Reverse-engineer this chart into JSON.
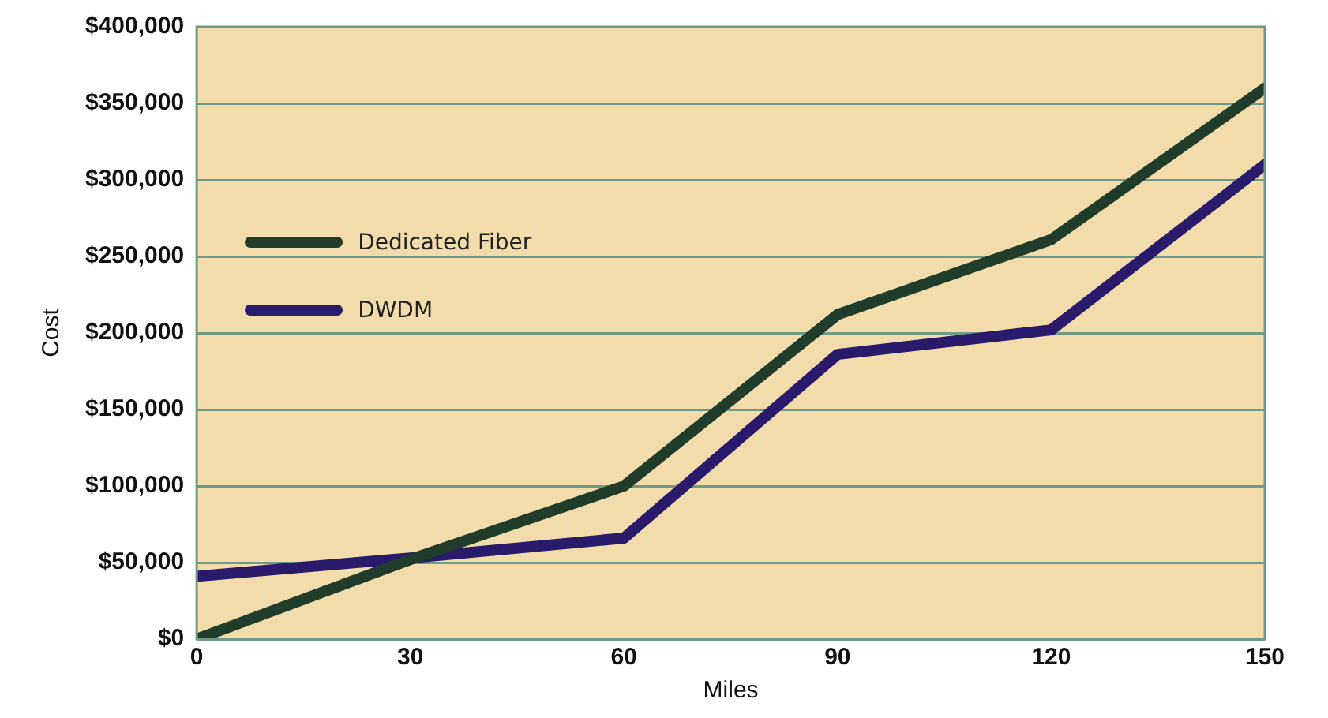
{
  "chart_data": {
    "type": "line",
    "xlabel": "Miles",
    "ylabel": "Cost",
    "x": [
      0,
      30,
      60,
      90,
      120,
      150
    ],
    "series": [
      {
        "name": "Dedicated Fiber",
        "color": "#1f3d2a",
        "values": [
          0,
          52000,
          100000,
          212000,
          261000,
          360000
        ]
      },
      {
        "name": "DWDM",
        "color": "#2a1a6b",
        "values": [
          41000,
          53000,
          66000,
          186000,
          202000,
          310000
        ]
      }
    ],
    "xlim": [
      0,
      150
    ],
    "xticks": [
      0,
      30,
      60,
      90,
      120,
      150
    ],
    "ylim": [
      0,
      400000
    ],
    "yticks": [
      {
        "value": 0,
        "label": "$0"
      },
      {
        "value": 50000,
        "label": "$50,000"
      },
      {
        "value": 100000,
        "label": "$100,000"
      },
      {
        "value": 150000,
        "label": "$150,000"
      },
      {
        "value": 200000,
        "label": "$200,000"
      },
      {
        "value": 250000,
        "label": "$250,000"
      },
      {
        "value": 300000,
        "label": "$300,000"
      },
      {
        "value": 350000,
        "label": "$350,000"
      },
      {
        "value": 400000,
        "label": "$400,000"
      }
    ],
    "grid": "y",
    "legend": "top left",
    "marker": "none",
    "line_style": "solid"
  }
}
